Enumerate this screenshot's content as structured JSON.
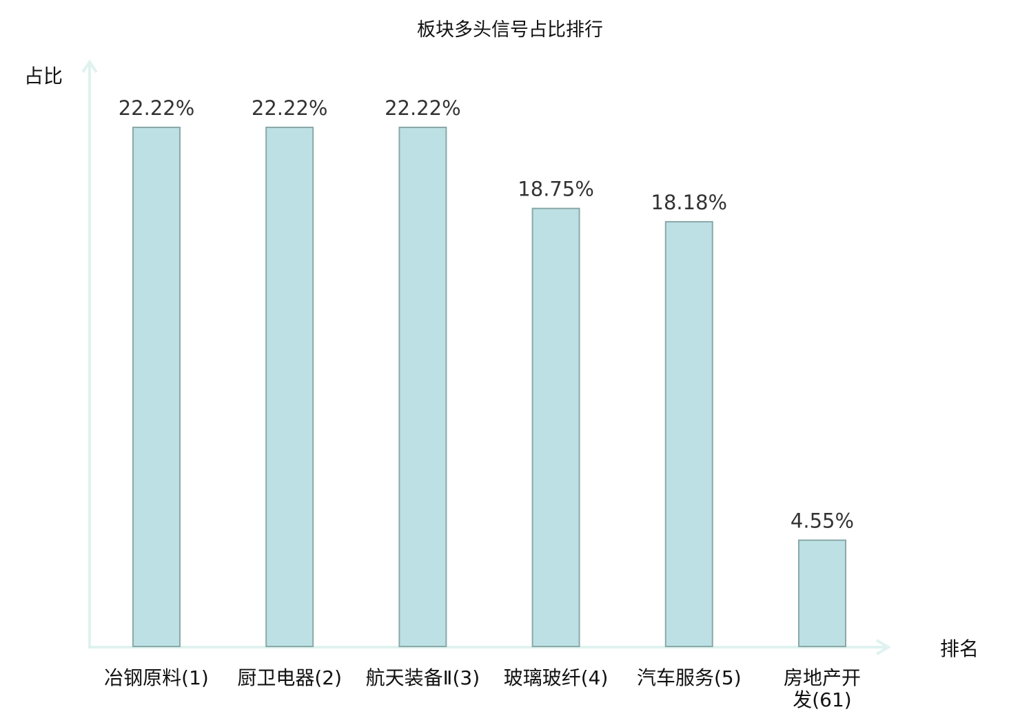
{
  "chart_data": {
    "type": "bar",
    "title": "板块多头信号占比排行",
    "xlabel": "排名",
    "ylabel": "占比",
    "categories": [
      "冶钢原料(1)",
      "厨卫电器(2)",
      "航天装备Ⅱ(3)",
      "玻璃玻纤(4)",
      "汽车服务(5)",
      "房地产开发(61)"
    ],
    "values": [
      22.22,
      22.22,
      22.22,
      18.75,
      18.18,
      4.55
    ],
    "data_labels": [
      "22.22%",
      "22.22%",
      "22.22%",
      "18.75%",
      "18.18%",
      "4.55%"
    ],
    "highlighted_category": "房地产开发(61)",
    "ylim": [
      0,
      25
    ],
    "grid": false,
    "legend": "none",
    "colors": {
      "bar_fill": "#bce0e3",
      "bar_stroke": "#8aa8a8",
      "axis": "#dff2ef",
      "highlight_label": "#e00000",
      "label": "#111111"
    }
  }
}
